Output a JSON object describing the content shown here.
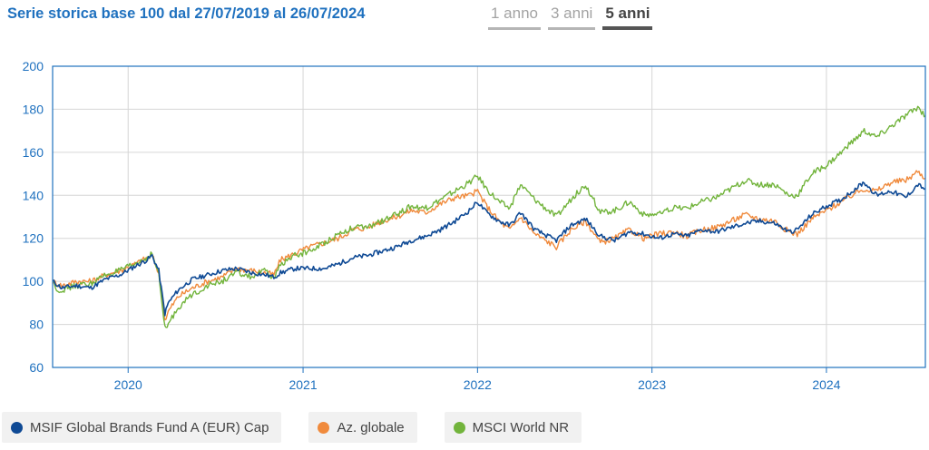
{
  "header": {
    "title": "Serie storica base 100 dal 27/07/2019 al 26/07/2024",
    "tabs": [
      {
        "label": "1 anno",
        "active": false
      },
      {
        "label": "3 anni",
        "active": false
      },
      {
        "label": "5 anni",
        "active": true
      }
    ]
  },
  "colors": {
    "axis": "#1f71bf",
    "grid": "#d6d6d6",
    "fund": "#0f4a95",
    "category": "#f08a3c",
    "index": "#72b43c"
  },
  "chart_data": {
    "type": "line",
    "title": "Serie storica base 100 dal 27/07/2019 al 26/07/2024",
    "x_range": [
      "2019-07-27",
      "2024-07-26"
    ],
    "xticks": [
      "2020",
      "2021",
      "2022",
      "2023",
      "2024"
    ],
    "ylim": [
      60,
      200
    ],
    "yticks": [
      60,
      80,
      100,
      120,
      140,
      160,
      180,
      200
    ],
    "grid": true,
    "legend_position": "bottom",
    "series": [
      {
        "name": "MSIF Global Brands Fund A (EUR) Cap",
        "color": "#0f4a95",
        "points": [
          [
            "2019-07-27",
            100
          ],
          [
            "2019-08-15",
            97
          ],
          [
            "2019-09-15",
            98
          ],
          [
            "2019-10-15",
            97
          ],
          [
            "2019-11-15",
            101
          ],
          [
            "2019-12-15",
            103
          ],
          [
            "2020-01-15",
            107
          ],
          [
            "2020-02-10",
            110
          ],
          [
            "2020-02-20",
            112
          ],
          [
            "2020-03-05",
            105
          ],
          [
            "2020-03-18",
            85
          ],
          [
            "2020-03-25",
            90
          ],
          [
            "2020-04-15",
            96
          ],
          [
            "2020-05-15",
            101
          ],
          [
            "2020-06-15",
            103
          ],
          [
            "2020-07-15",
            105
          ],
          [
            "2020-08-15",
            106
          ],
          [
            "2020-09-15",
            104
          ],
          [
            "2020-10-15",
            103
          ],
          [
            "2020-11-01",
            102
          ],
          [
            "2020-11-15",
            104
          ],
          [
            "2020-12-15",
            106
          ],
          [
            "2021-01-15",
            106
          ],
          [
            "2021-02-15",
            106
          ],
          [
            "2021-03-15",
            108
          ],
          [
            "2021-04-15",
            111
          ],
          [
            "2021-05-15",
            112
          ],
          [
            "2021-06-15",
            114
          ],
          [
            "2021-07-15",
            116
          ],
          [
            "2021-08-15",
            119
          ],
          [
            "2021-09-15",
            121
          ],
          [
            "2021-10-15",
            124
          ],
          [
            "2021-11-15",
            128
          ],
          [
            "2021-12-15",
            133
          ],
          [
            "2022-01-01",
            137
          ],
          [
            "2022-01-20",
            132
          ],
          [
            "2022-02-15",
            128
          ],
          [
            "2022-03-10",
            126
          ],
          [
            "2022-04-01",
            132
          ],
          [
            "2022-05-01",
            124
          ],
          [
            "2022-06-15",
            119
          ],
          [
            "2022-07-15",
            126
          ],
          [
            "2022-08-15",
            129
          ],
          [
            "2022-09-15",
            121
          ],
          [
            "2022-10-15",
            119
          ],
          [
            "2022-11-15",
            123
          ],
          [
            "2022-12-15",
            122
          ],
          [
            "2023-01-15",
            120
          ],
          [
            "2023-02-15",
            122
          ],
          [
            "2023-03-15",
            121
          ],
          [
            "2023-04-15",
            124
          ],
          [
            "2023-05-15",
            123
          ],
          [
            "2023-06-15",
            125
          ],
          [
            "2023-07-15",
            127
          ],
          [
            "2023-08-15",
            128
          ],
          [
            "2023-09-15",
            127
          ],
          [
            "2023-10-15",
            123
          ],
          [
            "2023-11-01",
            124
          ],
          [
            "2023-12-01",
            131
          ],
          [
            "2024-01-01",
            135
          ],
          [
            "2024-02-01",
            138
          ],
          [
            "2024-03-01",
            143
          ],
          [
            "2024-03-20",
            146
          ],
          [
            "2024-04-15",
            140
          ],
          [
            "2024-05-15",
            142
          ],
          [
            "2024-06-15",
            139
          ],
          [
            "2024-07-10",
            145
          ],
          [
            "2024-07-26",
            143
          ]
        ]
      },
      {
        "name": "Az. globale",
        "color": "#f08a3c",
        "points": [
          [
            "2019-07-27",
            100
          ],
          [
            "2019-08-15",
            98
          ],
          [
            "2019-09-15",
            100
          ],
          [
            "2019-10-15",
            100
          ],
          [
            "2019-11-15",
            103
          ],
          [
            "2019-12-15",
            105
          ],
          [
            "2020-01-15",
            108
          ],
          [
            "2020-02-10",
            111
          ],
          [
            "2020-02-20",
            112
          ],
          [
            "2020-03-05",
            104
          ],
          [
            "2020-03-18",
            82
          ],
          [
            "2020-03-25",
            86
          ],
          [
            "2020-04-15",
            93
          ],
          [
            "2020-05-15",
            97
          ],
          [
            "2020-06-15",
            100
          ],
          [
            "2020-07-15",
            102
          ],
          [
            "2020-08-15",
            106
          ],
          [
            "2020-09-15",
            105
          ],
          [
            "2020-10-15",
            104
          ],
          [
            "2020-11-01",
            103
          ],
          [
            "2020-11-15",
            110
          ],
          [
            "2020-12-15",
            113
          ],
          [
            "2021-01-15",
            116
          ],
          [
            "2021-02-15",
            118
          ],
          [
            "2021-03-15",
            120
          ],
          [
            "2021-04-15",
            124
          ],
          [
            "2021-05-15",
            125
          ],
          [
            "2021-06-15",
            128
          ],
          [
            "2021-07-15",
            130
          ],
          [
            "2021-08-15",
            133
          ],
          [
            "2021-09-15",
            132
          ],
          [
            "2021-10-15",
            136
          ],
          [
            "2021-11-15",
            139
          ],
          [
            "2021-12-15",
            140
          ],
          [
            "2022-01-01",
            142
          ],
          [
            "2022-01-20",
            135
          ],
          [
            "2022-02-15",
            128
          ],
          [
            "2022-03-10",
            124
          ],
          [
            "2022-04-01",
            130
          ],
          [
            "2022-05-01",
            122
          ],
          [
            "2022-06-15",
            116
          ],
          [
            "2022-07-15",
            124
          ],
          [
            "2022-08-15",
            128
          ],
          [
            "2022-09-15",
            118
          ],
          [
            "2022-10-15",
            120
          ],
          [
            "2022-11-15",
            124
          ],
          [
            "2022-12-15",
            120
          ],
          [
            "2023-01-15",
            122
          ],
          [
            "2023-02-15",
            123
          ],
          [
            "2023-03-15",
            121
          ],
          [
            "2023-04-15",
            124
          ],
          [
            "2023-05-15",
            125
          ],
          [
            "2023-06-15",
            128
          ],
          [
            "2023-07-15",
            131
          ],
          [
            "2023-08-15",
            129
          ],
          [
            "2023-09-15",
            128
          ],
          [
            "2023-10-15",
            123
          ],
          [
            "2023-11-01",
            122
          ],
          [
            "2023-12-01",
            129
          ],
          [
            "2024-01-01",
            133
          ],
          [
            "2024-02-01",
            137
          ],
          [
            "2024-03-01",
            141
          ],
          [
            "2024-03-20",
            143
          ],
          [
            "2024-04-15",
            142
          ],
          [
            "2024-05-15",
            146
          ],
          [
            "2024-06-15",
            147
          ],
          [
            "2024-07-10",
            151
          ],
          [
            "2024-07-26",
            148
          ]
        ]
      },
      {
        "name": "MSCI World NR",
        "color": "#72b43c",
        "points": [
          [
            "2019-07-27",
            100
          ],
          [
            "2019-08-10",
            95
          ],
          [
            "2019-08-15",
            96
          ],
          [
            "2019-09-15",
            98
          ],
          [
            "2019-10-15",
            99
          ],
          [
            "2019-11-15",
            103
          ],
          [
            "2019-12-15",
            105
          ],
          [
            "2020-01-15",
            108
          ],
          [
            "2020-02-10",
            111
          ],
          [
            "2020-02-20",
            113
          ],
          [
            "2020-03-05",
            103
          ],
          [
            "2020-03-18",
            78
          ],
          [
            "2020-03-25",
            80
          ],
          [
            "2020-04-15",
            88
          ],
          [
            "2020-05-15",
            94
          ],
          [
            "2020-06-15",
            98
          ],
          [
            "2020-07-15",
            100
          ],
          [
            "2020-08-15",
            104
          ],
          [
            "2020-09-15",
            102
          ],
          [
            "2020-10-15",
            105
          ],
          [
            "2020-11-01",
            101
          ],
          [
            "2020-11-15",
            108
          ],
          [
            "2020-12-15",
            112
          ],
          [
            "2021-01-15",
            114
          ],
          [
            "2021-02-15",
            118
          ],
          [
            "2021-03-15",
            122
          ],
          [
            "2021-04-15",
            125
          ],
          [
            "2021-05-15",
            125
          ],
          [
            "2021-06-15",
            128
          ],
          [
            "2021-07-15",
            131
          ],
          [
            "2021-08-15",
            135
          ],
          [
            "2021-09-15",
            134
          ],
          [
            "2021-10-15",
            138
          ],
          [
            "2021-11-15",
            142
          ],
          [
            "2021-12-15",
            146
          ],
          [
            "2022-01-01",
            149
          ],
          [
            "2022-01-20",
            143
          ],
          [
            "2022-02-15",
            137
          ],
          [
            "2022-03-10",
            134
          ],
          [
            "2022-04-01",
            145
          ],
          [
            "2022-05-01",
            138
          ],
          [
            "2022-06-15",
            130
          ],
          [
            "2022-07-15",
            138
          ],
          [
            "2022-08-15",
            145
          ],
          [
            "2022-09-15",
            132
          ],
          [
            "2022-10-15",
            133
          ],
          [
            "2022-11-15",
            137
          ],
          [
            "2022-12-15",
            131
          ],
          [
            "2023-01-15",
            131
          ],
          [
            "2023-02-15",
            134
          ],
          [
            "2023-03-15",
            134
          ],
          [
            "2023-04-15",
            137
          ],
          [
            "2023-05-15",
            139
          ],
          [
            "2023-06-15",
            143
          ],
          [
            "2023-07-15",
            147
          ],
          [
            "2023-08-15",
            145
          ],
          [
            "2023-09-15",
            145
          ],
          [
            "2023-10-15",
            140
          ],
          [
            "2023-11-01",
            140
          ],
          [
            "2023-12-01",
            150
          ],
          [
            "2024-01-01",
            154
          ],
          [
            "2024-02-01",
            160
          ],
          [
            "2024-03-01",
            166
          ],
          [
            "2024-03-20",
            170
          ],
          [
            "2024-04-15",
            167
          ],
          [
            "2024-05-15",
            172
          ],
          [
            "2024-06-15",
            177
          ],
          [
            "2024-07-10",
            181
          ],
          [
            "2024-07-26",
            177
          ]
        ]
      }
    ]
  }
}
